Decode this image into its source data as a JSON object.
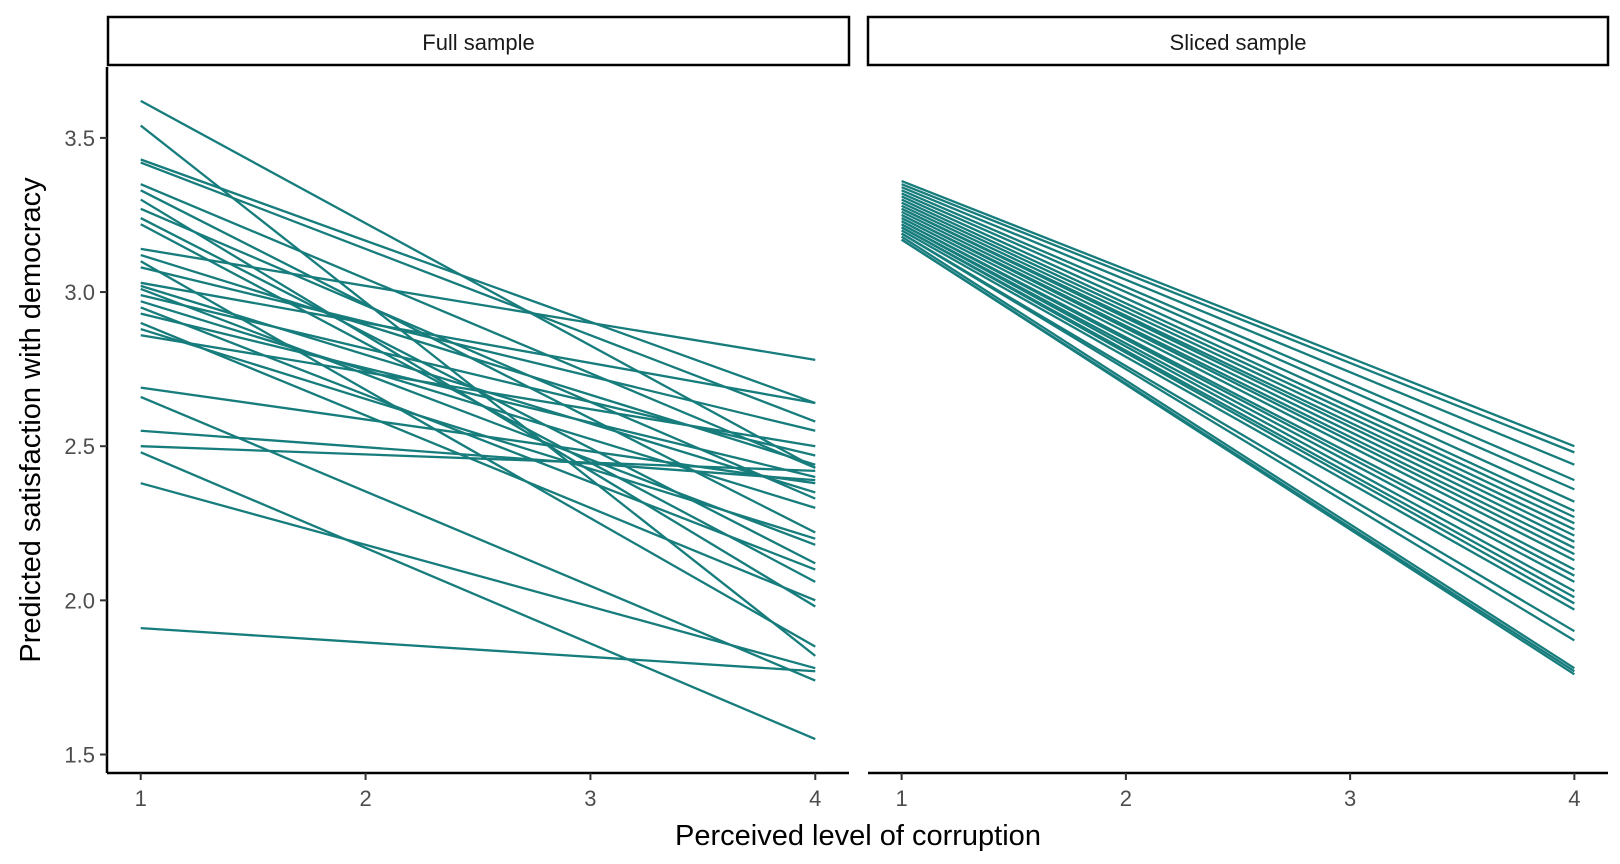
{
  "chart_data": {
    "type": "line",
    "xlabel": "Perceived level of corruption",
    "ylabel": "Predicted satisfaction with democracy",
    "xlim": [
      0.85,
      4.15
    ],
    "ylim": [
      1.44,
      3.73
    ],
    "x_ticks": [
      1,
      2,
      3,
      4
    ],
    "y_ticks": [
      1.5,
      2.0,
      2.5,
      3.0,
      3.5
    ],
    "y_tick_labels": [
      "1.5",
      "2.0",
      "2.5",
      "3.0",
      "3.5"
    ],
    "line_color": "#177C7C",
    "panels": [
      {
        "label": "Full sample",
        "lines": [
          [
            3.62,
            2.43
          ],
          [
            3.54,
            1.82
          ],
          [
            3.43,
            2.64
          ],
          [
            3.42,
            2.58
          ],
          [
            3.35,
            2.43
          ],
          [
            3.33,
            2.22
          ],
          [
            3.3,
            1.98
          ],
          [
            3.27,
            2.33
          ],
          [
            3.24,
            2.12
          ],
          [
            3.22,
            2.06
          ],
          [
            3.14,
            2.78
          ],
          [
            3.12,
            2.44
          ],
          [
            3.1,
            1.85
          ],
          [
            3.08,
            2.55
          ],
          [
            3.03,
            2.64
          ],
          [
            3.02,
            2.35
          ],
          [
            3.01,
            2.18
          ],
          [
            2.99,
            2.47
          ],
          [
            2.97,
            2.3
          ],
          [
            2.95,
            2.1
          ],
          [
            2.93,
            2.4
          ],
          [
            2.9,
            2.0
          ],
          [
            2.88,
            2.2
          ],
          [
            2.86,
            2.5
          ],
          [
            2.69,
            2.38
          ],
          [
            2.66,
            1.74
          ],
          [
            2.55,
            2.39
          ],
          [
            2.5,
            2.42
          ],
          [
            2.48,
            1.55
          ],
          [
            2.38,
            1.78
          ],
          [
            1.91,
            1.77
          ]
        ]
      },
      {
        "label": "Sliced sample",
        "lines": [
          [
            3.36,
            2.5
          ],
          [
            3.35,
            2.48
          ],
          [
            3.34,
            2.44
          ],
          [
            3.33,
            2.39
          ],
          [
            3.32,
            2.36
          ],
          [
            3.31,
            2.32
          ],
          [
            3.3,
            2.29
          ],
          [
            3.29,
            2.27
          ],
          [
            3.28,
            2.25
          ],
          [
            3.27,
            2.23
          ],
          [
            3.27,
            2.21
          ],
          [
            3.26,
            2.19
          ],
          [
            3.25,
            2.17
          ],
          [
            3.25,
            2.15
          ],
          [
            3.24,
            2.13
          ],
          [
            3.23,
            2.1
          ],
          [
            3.23,
            2.08
          ],
          [
            3.22,
            2.06
          ],
          [
            3.22,
            2.03
          ],
          [
            3.21,
            2.01
          ],
          [
            3.21,
            1.99
          ],
          [
            3.2,
            1.97
          ],
          [
            3.19,
            1.9
          ],
          [
            3.19,
            1.87
          ],
          [
            3.18,
            1.78
          ],
          [
            3.17,
            1.77
          ],
          [
            3.17,
            1.76
          ]
        ]
      }
    ]
  }
}
